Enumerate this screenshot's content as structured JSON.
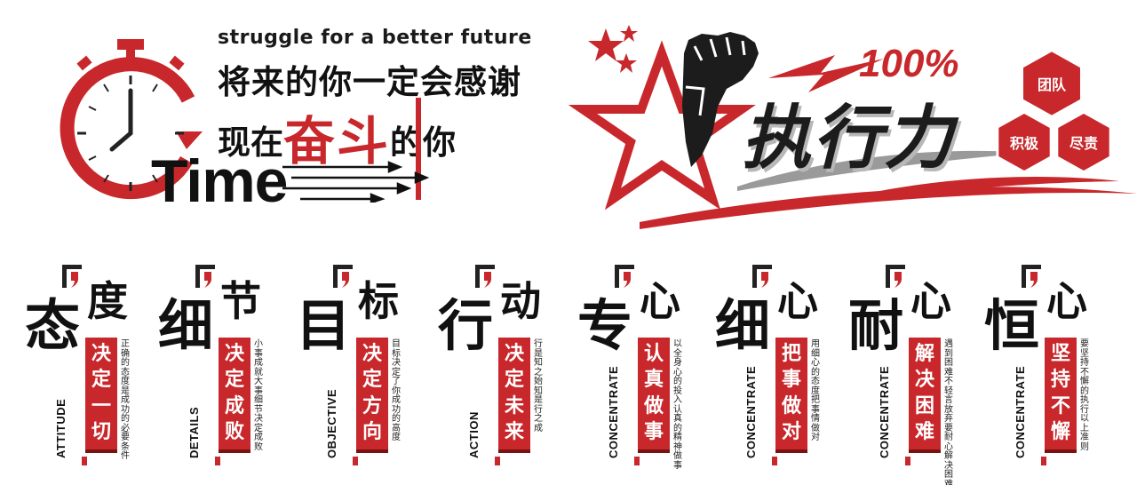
{
  "top_left": {
    "slogan_en": "struggle for a better future",
    "line1": "将来的你一定会感谢",
    "line2_before": "现在",
    "line2_highlight": "奋斗",
    "line2_after": "的你",
    "time_word": "Time"
  },
  "top_right": {
    "percent": "100%",
    "title": "执行力",
    "hex_top": "团队",
    "hex_left": "积极",
    "hex_right": "尽责"
  },
  "panels": [
    {
      "big1": "态",
      "big2": "度",
      "en": "ATTITUDE",
      "red": [
        "决",
        "定",
        "一",
        "切"
      ],
      "desc": "正确的态度是成功的必要条件"
    },
    {
      "big1": "细",
      "big2": "节",
      "en": "DETAILS",
      "red": [
        "决",
        "定",
        "成",
        "败"
      ],
      "desc": "小事成就大事细节决定成败"
    },
    {
      "big1": "目",
      "big2": "标",
      "en": "OBJECTIVE",
      "red": [
        "决",
        "定",
        "方",
        "向"
      ],
      "desc": "目标决定了你成功的高度"
    },
    {
      "big1": "行",
      "big2": "动",
      "en": "ACTION",
      "red": [
        "决",
        "定",
        "未",
        "来"
      ],
      "desc": "行是知之始知是行之成"
    },
    {
      "big1": "专",
      "big2": "心",
      "en": "CONCENTRATE",
      "red": [
        "认",
        "真",
        "做",
        "事"
      ],
      "desc": "以全身心的投入认真的精神做事"
    },
    {
      "big1": "细",
      "big2": "心",
      "en": "CONCENTRATE",
      "red": [
        "把",
        "事",
        "做",
        "对"
      ],
      "desc": "用细心的态度把事情做对"
    },
    {
      "big1": "耐",
      "big2": "心",
      "en": "CONCENTRATE",
      "red": [
        "解",
        "决",
        "困",
        "难"
      ],
      "desc": "遇到困难不轻言放弃要耐心解决困难"
    },
    {
      "big1": "恒",
      "big2": "心",
      "en": "CONCENTRATE",
      "red": [
        "坚",
        "持",
        "不",
        "懈"
      ],
      "desc": "要坚持不懈的执行以上准则"
    }
  ],
  "colors": {
    "accent": "#c8282b",
    "ink": "#111111",
    "bg": "#ffffff"
  }
}
